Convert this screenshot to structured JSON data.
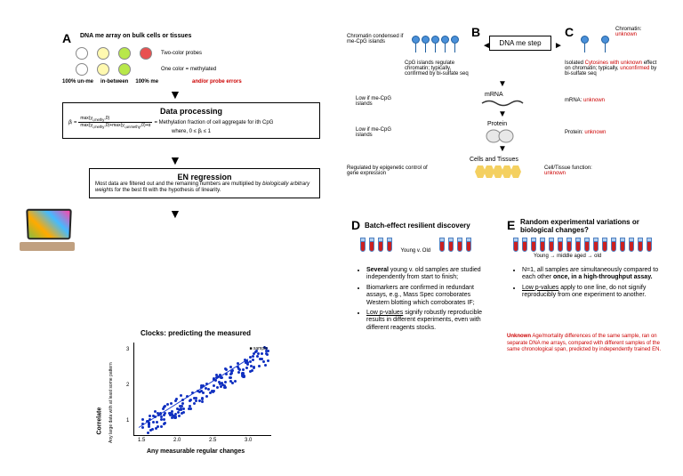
{
  "panelA": {
    "label": "A",
    "title": "DNA me array on bulk cells or tissues",
    "probes": {
      "label1": "100% un-me",
      "label2": "in-between",
      "label3": "100% me",
      "two_color": "Two-color probes",
      "one_color": "One color = methylated",
      "error": "and/or probe errors",
      "colors": [
        "#ffffff",
        "#fff9b0",
        "#b8e84a",
        "#e85050",
        "#ffffff",
        "#fff9b0",
        "#b8e84a"
      ]
    },
    "data_proc": {
      "title": "Data processing",
      "formula": "βᵢ = ",
      "formula_desc": "= Methylation fraction of cell aggregate for ith CpG",
      "constraint": "where, 0 ≤ βᵢ ≤ 1"
    },
    "en": {
      "title": "EN regression",
      "desc": "Most data are filtered out and the remaining numbers are multiplied by biologically arbitrary weights for the best fit with the hypothesis of linearity."
    },
    "chart": {
      "title": "Clocks: predicting the measured",
      "legend": "sample",
      "ylabel": "Correlate",
      "ylabel2": "Any large data with at least some pattern",
      "xlabel": "Any measurable regular changes",
      "xticks": [
        "1.5",
        "2.0",
        "2.5",
        "3.0"
      ],
      "yticks": [
        "1",
        "2",
        "3"
      ]
    }
  },
  "panelB": {
    "label": "B",
    "chromatin": "Chromatin condensed if me-CpG islands",
    "cpg_desc": "CpG islands regulate chromatin; typically, confirmed by bi-sulfate seq",
    "low1": "Low if me-CpG islands",
    "low2": "Low if me-CpG islands",
    "mrna": "mRNA",
    "protein": "Protein",
    "cells": "Cells and Tissues",
    "regulated": "Regulated by epigenetic control of gene expression"
  },
  "panelC": {
    "label": "C",
    "dna_step": "DNA me step",
    "chromatin": "Chromatin:",
    "unknown": "unknown",
    "isolated": "Isolated Cytosines with unknown effect on chromatin; typically, unconfirmed by bi-sulfate seq",
    "mrna": "mRNA: unknown",
    "protein": "Protein: unknown",
    "cellfn": "Cell/Tissue function: unknown"
  },
  "panelD": {
    "label": "D",
    "title": "Batch-effect resilient discovery",
    "label_yo": "Young v. Old",
    "bullets": [
      "Several young v. old samples are studied independently from start to finish;",
      "Biomarkers are confirmed in redundant assays, e.g., Mass Spec corroborates Western blotting which corroborates IF;",
      "Low p-values signify robustly reproducible results in different experiments, even with different reagents stocks."
    ]
  },
  "panelE": {
    "label": "E",
    "title": "Random experimental variations or biological changes?",
    "label_age": "Young → middle aged → old",
    "bullets": [
      "N=1, all samples are simultaneously compared to each other once, in a high-throughput assay.",
      "Low p-values apply to one line, do not signify reproducibly from one experiment to another."
    ],
    "unknown_label": "Unknown",
    "unknown_text": "Age/mortality differences of the same sample, ran on separate DNA me arrays, compared with different samples of the same chronological span, predicted by independently trained EN."
  }
}
